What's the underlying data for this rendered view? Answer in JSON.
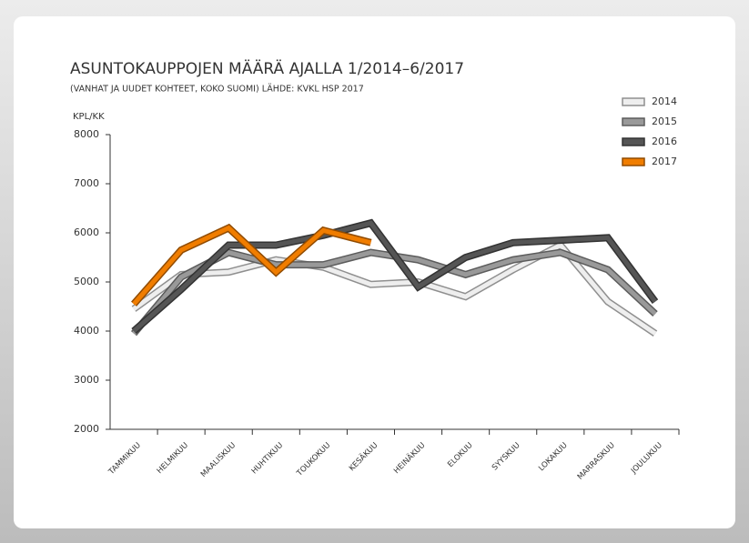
{
  "chart_data": {
    "type": "line",
    "title": "ASUNTOKAUPPOJEN MÄÄRÄ AJALLA 1/2014–6/2017",
    "subtitle": "(VANHAT JA UUDET KOHTEET, KOKO SUOMI) LÄHDE: KVKL HSP 2017",
    "y_label": "KPL/KK",
    "categories": [
      "TAMMIKUU",
      "HELMIKUU",
      "MAALISKUU",
      "HUHTIKUU",
      "TOUKOKUU",
      "KESÄKUU",
      "HEINÄKUU",
      "ELOKUU",
      "SYYSKUU",
      "LOKAKUU",
      "MARRASKUU",
      "JOULUKUU"
    ],
    "series": [
      {
        "name": "2014",
        "color": "#eeeeee",
        "values": [
          4450,
          5150,
          5200,
          5450,
          5300,
          4950,
          5000,
          4700,
          5250,
          5750,
          4600,
          3950
        ]
      },
      {
        "name": "2015",
        "color": "#999999",
        "values": [
          3950,
          5100,
          5600,
          5350,
          5350,
          5600,
          5450,
          5150,
          5450,
          5600,
          5250,
          4350
        ]
      },
      {
        "name": "2016",
        "color": "#555555",
        "values": [
          4000,
          4850,
          5750,
          5750,
          5950,
          6200,
          4900,
          5500,
          5800,
          5850,
          5900,
          4600
        ]
      },
      {
        "name": "2017",
        "color": "#f07d00",
        "values": [
          4550,
          5650,
          6100,
          5200,
          6050,
          5800,
          null,
          null,
          null,
          null,
          null,
          null
        ]
      }
    ],
    "ylim": [
      2000,
      8000
    ],
    "yticks": [
      2000,
      3000,
      4000,
      5000,
      6000,
      7000,
      8000
    ],
    "legend": "top-right"
  }
}
